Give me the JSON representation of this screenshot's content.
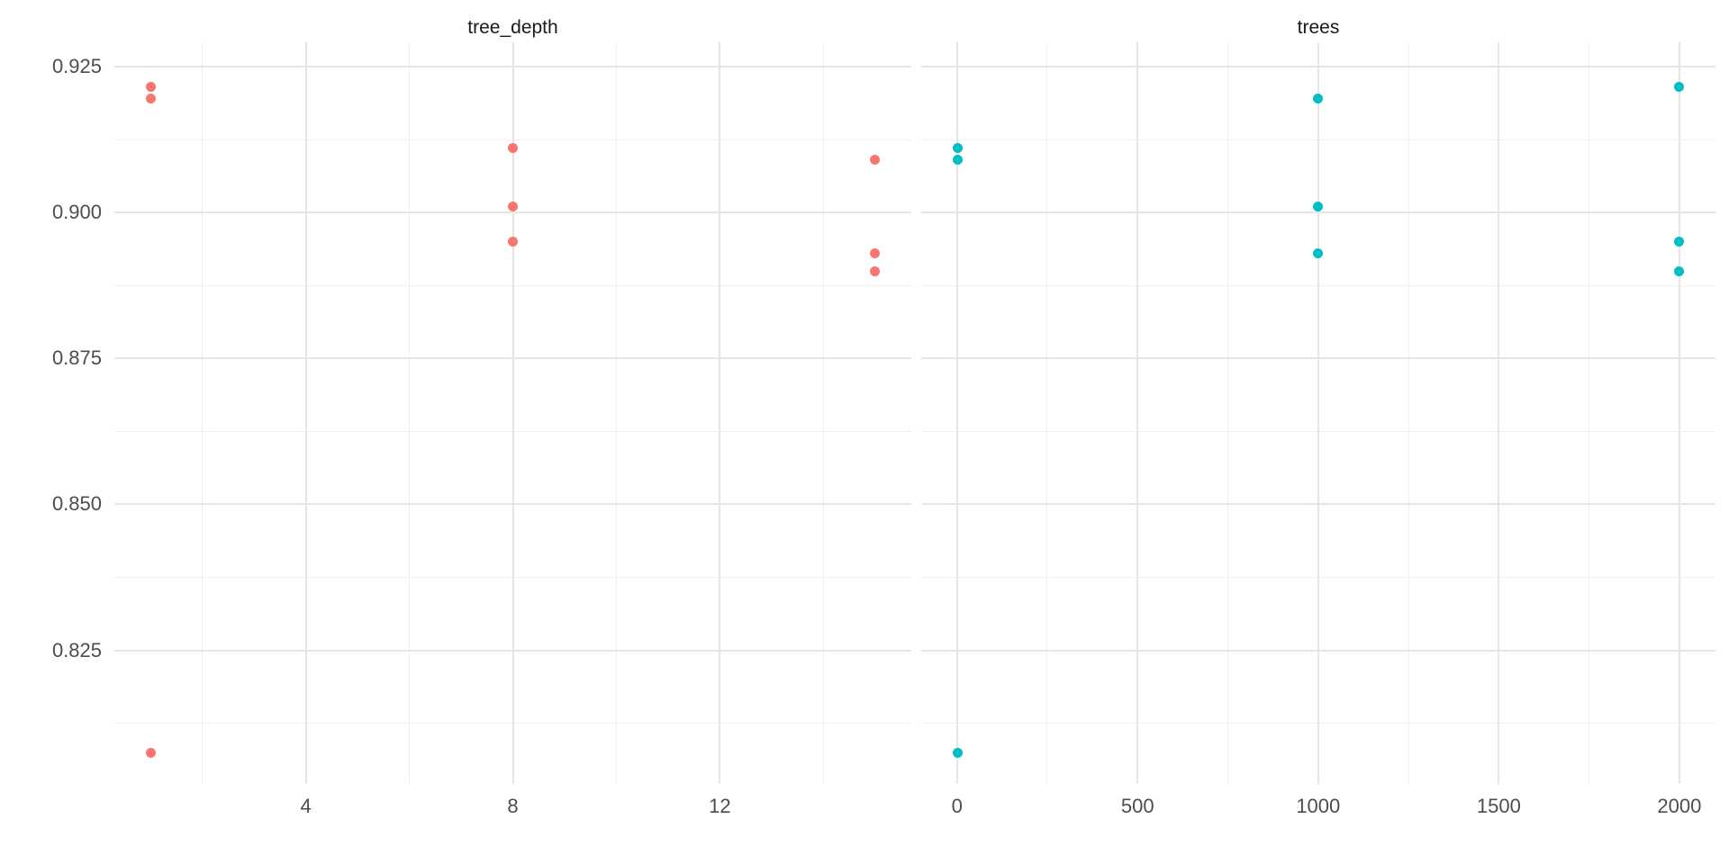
{
  "chart_data": {
    "type": "scatter",
    "title": "",
    "xlabel": "",
    "ylabel": "",
    "legend": "none",
    "grid": true,
    "panel_background": "#FFFFFF",
    "gridline_major_color": "#E5E5E5",
    "gridline_minor_color": "#EFEFEF",
    "axis_text_color": "#4D4D4D",
    "facet_title_color": "#1A1A1A",
    "y_axis": {
      "ticks": [
        0.925,
        0.9,
        0.875,
        0.85,
        0.825
      ],
      "tick_labels": [
        "0.925",
        "0.900",
        "0.875",
        "0.850",
        "0.825"
      ],
      "minor_ticks": [
        0.9125,
        0.8875,
        0.8625,
        0.8375,
        0.8125
      ],
      "range": [
        0.8021,
        0.9292
      ]
    },
    "facets": [
      {
        "title": "tree_depth",
        "color": "#F8766D",
        "x_axis": {
          "ticks": [
            4,
            8,
            12
          ],
          "tick_labels": [
            "4",
            "8",
            "12"
          ],
          "minor_ticks": [
            2,
            6,
            10,
            14
          ],
          "range": [
            0.3,
            15.7
          ]
        },
        "points": [
          [
            1,
            0.9215
          ],
          [
            1,
            0.9195
          ],
          [
            1,
            0.8074
          ],
          [
            8,
            0.911
          ],
          [
            8,
            0.901
          ],
          [
            8,
            0.895
          ],
          [
            15,
            0.909
          ],
          [
            15,
            0.893
          ],
          [
            15,
            0.89
          ]
        ]
      },
      {
        "title": "trees",
        "color": "#00BFC4",
        "x_axis": {
          "ticks": [
            0,
            500,
            1000,
            1500,
            2000
          ],
          "tick_labels": [
            "0",
            "500",
            "1000",
            "1500",
            "2000"
          ],
          "minor_ticks": [
            250,
            750,
            1250,
            1750
          ],
          "range": [
            -99,
            2100
          ]
        },
        "points": [
          [
            1,
            0.911
          ],
          [
            1,
            0.909
          ],
          [
            1,
            0.8074
          ],
          [
            1000,
            0.9195
          ],
          [
            1000,
            0.901
          ],
          [
            1000,
            0.893
          ],
          [
            2000,
            0.9215
          ],
          [
            2000,
            0.895
          ],
          [
            2000,
            0.89
          ]
        ]
      }
    ]
  }
}
